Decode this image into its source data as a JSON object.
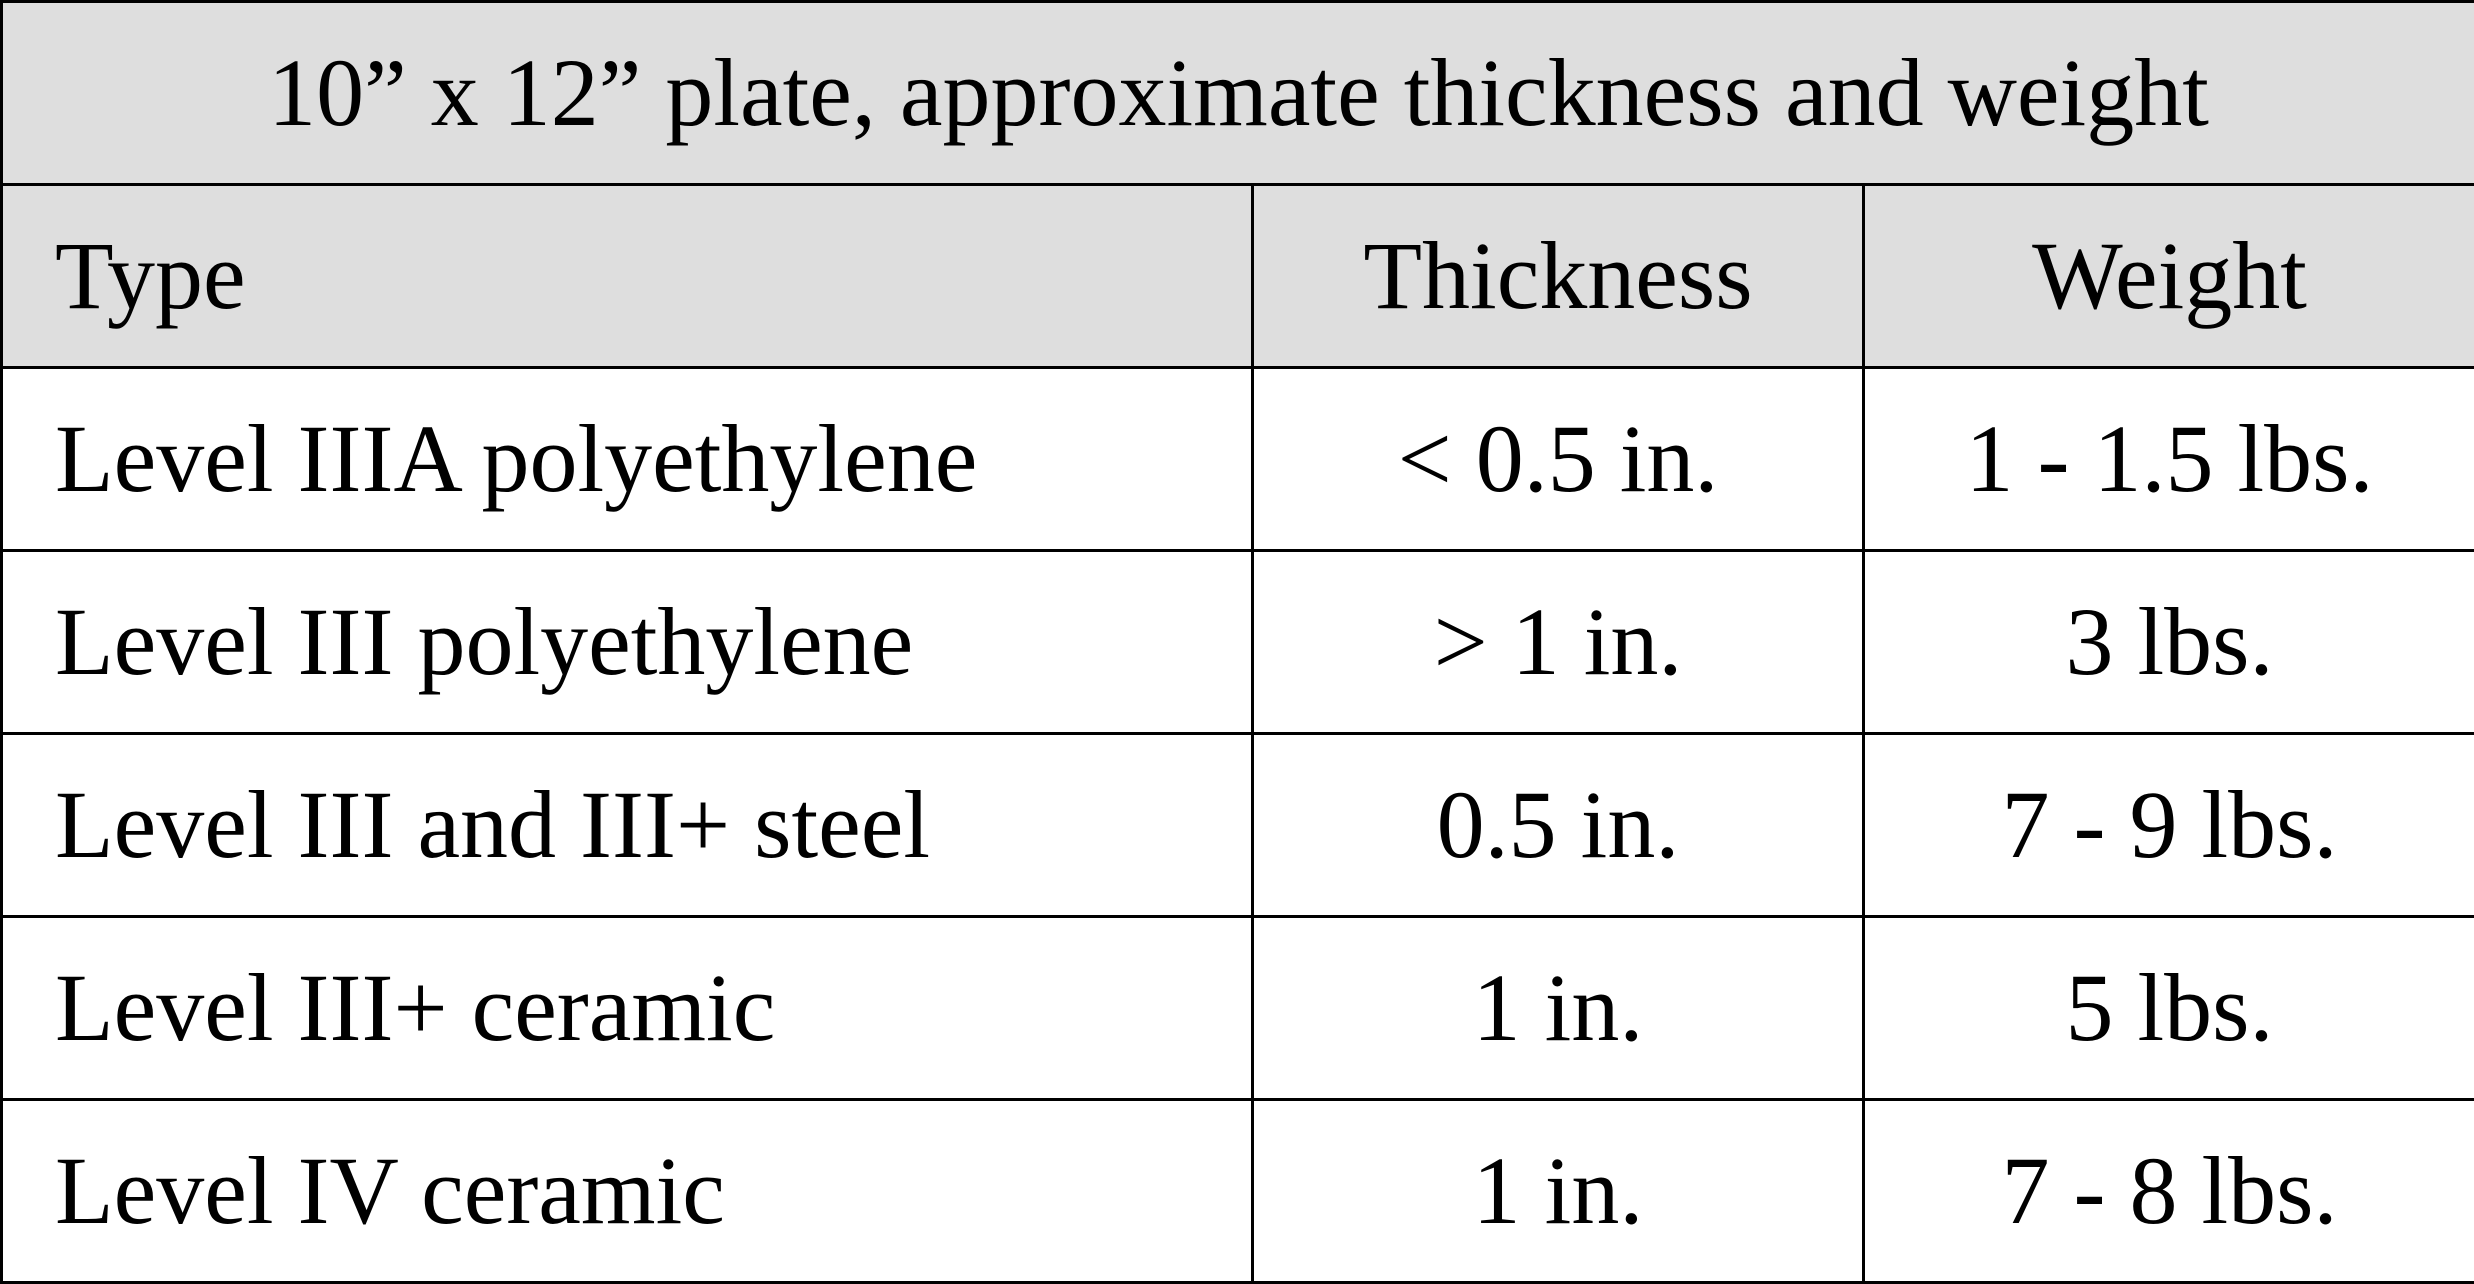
{
  "header": {
    "title": "10” x 12” plate, approximate thickness and weight"
  },
  "table": {
    "columns": [
      "Type",
      "Thickness",
      "Weight"
    ],
    "rows": [
      [
        "Level IIIA polyethylene",
        "< 0.5 in.",
        "1 - 1.5 lbs."
      ],
      [
        "Level III polyethylene",
        "> 1 in.",
        "3 lbs."
      ],
      [
        "Level III and III+ steel",
        "0.5 in.",
        "7 - 9 lbs."
      ],
      [
        "Level III+ ceramic",
        "1 in.",
        "5 lbs."
      ],
      [
        "Level IV ceramic",
        "1 in.",
        "7 - 8 lbs."
      ]
    ]
  }
}
